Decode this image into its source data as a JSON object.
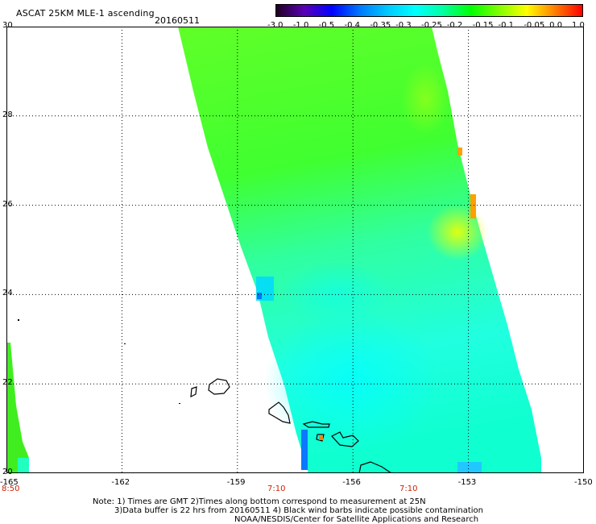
{
  "header": {
    "title": "ASCAT 25KM MLE-1 ascending",
    "date": "20160511"
  },
  "colorbar": {
    "labels": [
      "-3.0",
      "-1.0",
      "-0.5",
      "-0.4",
      "-0.35",
      "-0.3",
      "-0.25",
      "-0.2",
      "-0.15",
      "-0.1",
      "-0.05",
      "0.0",
      "1.0"
    ],
    "colors": [
      "#200020",
      "#5a00b4",
      "#0000ff",
      "#0078ff",
      "#00c8ff",
      "#00ffff",
      "#00ffa0",
      "#00ff00",
      "#80ff00",
      "#ffff00",
      "#ff8000",
      "#ff0000"
    ]
  },
  "map": {
    "lat_labels": [
      "30",
      "28",
      "26",
      "24",
      "22",
      "20"
    ],
    "lon_labels": [
      "-165",
      "-162",
      "-159",
      "-156",
      "-153",
      "-150"
    ],
    "time_labels": [
      "8:50",
      "7:10",
      "7:10"
    ],
    "grid": "dotted"
  },
  "notes": {
    "line1": "Note: 1) Times are GMT 2)Times along bottom correspond to measurement at 25N",
    "line2": "3)Data buffer is 22 hrs from 20160511 4) Black wind barbs indicate possible contamination",
    "line3": "NOAA/NESDIS/Center for Satellite Applications and Research"
  }
}
